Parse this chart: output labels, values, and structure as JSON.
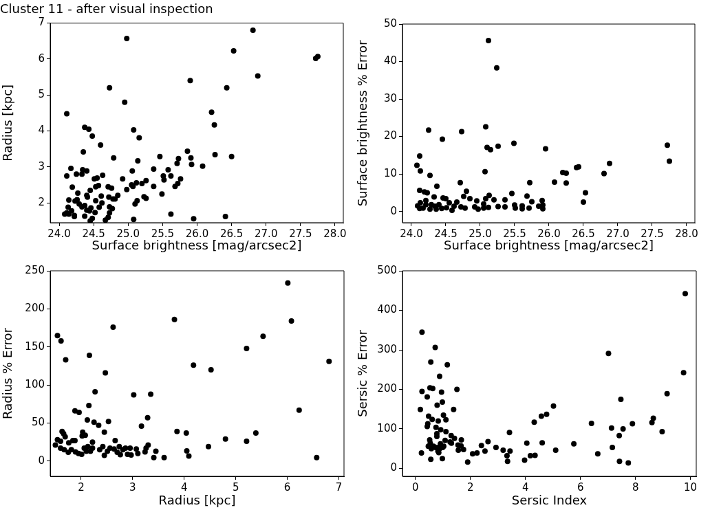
{
  "chart_data": [
    {
      "type": "scatter",
      "title": "Cluster 11 - after visual inspection",
      "xlabel": "Surface brightness [mag/arcsec2]",
      "ylabel": "Radius [kpc]",
      "color": "#000000",
      "marker": "circle",
      "x": [
        24.98,
        26.81,
        26.53,
        27.72,
        27.75,
        26.88,
        25.9,
        24.73,
        26.43,
        24.95,
        24.11,
        26.21,
        26.25,
        24.37,
        24.43,
        25.08,
        24.48,
        25.16,
        24.6,
        24.35,
        25.86,
        24.79,
        25.46,
        25.91,
        26.26,
        26.5,
        25.73,
        25.14,
        25.71,
        25.92,
        26.08,
        24.17,
        24.34,
        24.4,
        25.37,
        25.58,
        24.11,
        24.25,
        24.33,
        24.63,
        25.06,
        25.51,
        25.52,
        25.62,
        25.76,
        24.51,
        24.55,
        24.92,
        25.12,
        25.2,
        25.26,
        25.05,
        25.07,
        24.19,
        24.53,
        24.57,
        24.71,
        24.76,
        25.37,
        25.68,
        25.72,
        24.45,
        24.98,
        24.27,
        24.4,
        24.41,
        24.61,
        24.72,
        24.78,
        24.81,
        24.85,
        25.23,
        25.26,
        25.49,
        24.14,
        24.23,
        24.26,
        24.53,
        24.62,
        25.13,
        25.1,
        24.29,
        24.33,
        24.37,
        24.13,
        24.58,
        24.73,
        24.77,
        24.4,
        24.44,
        24.46,
        24.18,
        24.08,
        24.11,
        24.14,
        24.22,
        24.22,
        24.37,
        24.52,
        24.73,
        25.62,
        24.71,
        26.41,
        25.08,
        25.95,
        24.67,
        24.45,
        24.48
      ],
      "values": [
        6.57,
        6.8,
        6.23,
        6.02,
        6.07,
        5.53,
        5.4,
        5.2,
        5.2,
        4.8,
        4.48,
        4.52,
        4.17,
        4.1,
        4.05,
        4.03,
        3.86,
        3.81,
        3.61,
        3.42,
        3.44,
        3.25,
        3.29,
        3.25,
        3.34,
        3.29,
        3.23,
        3.17,
        3.1,
        3.07,
        3.02,
        2.96,
        2.92,
        2.89,
        2.94,
        2.92,
        2.75,
        2.8,
        2.8,
        2.77,
        2.89,
        2.75,
        2.64,
        2.75,
        2.67,
        2.67,
        2.69,
        2.67,
        2.56,
        2.54,
        2.62,
        2.5,
        2.46,
        2.44,
        2.45,
        2.48,
        2.45,
        2.41,
        2.46,
        2.46,
        2.54,
        2.35,
        2.37,
        2.27,
        2.21,
        2.16,
        2.19,
        2.16,
        2.11,
        2.11,
        2.21,
        2.17,
        2.13,
        2.25,
        2.08,
        2.05,
        2.09,
        2.06,
        2.0,
        2.06,
        1.97,
        1.97,
        1.89,
        1.93,
        1.88,
        1.88,
        1.89,
        1.84,
        1.8,
        1.78,
        1.86,
        1.78,
        1.69,
        1.72,
        1.69,
        1.65,
        1.62,
        1.63,
        1.73,
        1.72,
        1.69,
        1.6,
        1.62,
        1.54,
        1.56,
        1.52,
        1.5,
        1.57
      ],
      "xlim": [
        23.87,
        28.12
      ],
      "xticks": [
        {
          "value": 24,
          "label": "24.0"
        },
        24.5,
        {
          "value": 25,
          "label": "25.0"
        },
        25.5,
        {
          "value": 26,
          "label": "26.0"
        },
        26.5,
        {
          "value": 27,
          "label": "27.0"
        },
        27.5,
        {
          "value": 28,
          "label": "28.0"
        }
      ],
      "ylim": [
        1.45,
        7
      ],
      "yticks": [
        2,
        3,
        4,
        5,
        6,
        7
      ]
    },
    {
      "type": "scatter",
      "xlabel": "Surface brightness [mag/arcsec2]",
      "ylabel": "Surface brightness % Error",
      "color": "#000000",
      "marker": "circle",
      "x": [
        25.12,
        25.24,
        25.08,
        24.25,
        24.73,
        24.45,
        25.49,
        27.72,
        25.1,
        25.15,
        25.26,
        25.95,
        24.12,
        27.75,
        26.88,
        24.08,
        26.4,
        26.43,
        24.13,
        25.07,
        26.2,
        26.25,
        26.8,
        24.27,
        24.71,
        25.72,
        26.08,
        26.25,
        24.37,
        24.12,
        24.19,
        24.23,
        24.8,
        26.53,
        25.46,
        24.33,
        24.76,
        25.13,
        25.68,
        24.46,
        24.5,
        24.85,
        25.08,
        25.2,
        25.36,
        25.9,
        26.5,
        25.75,
        24.21,
        24.09,
        24.13,
        24.12,
        24.17,
        24.21,
        24.27,
        24.29,
        24.34,
        24.36,
        24.4,
        24.44,
        24.51,
        24.55,
        24.59,
        24.62,
        24.66,
        24.72,
        24.78,
        24.92,
        24.95,
        24.97,
        25.05,
        25.05,
        25.12,
        25.26,
        25.36,
        25.5,
        25.51,
        25.61,
        25.61,
        25.71,
        25.85,
        25.91,
        25.91
      ],
      "values": [
        45.6,
        38.3,
        22.6,
        21.7,
        21.3,
        19.3,
        18.2,
        17.7,
        17.1,
        16.5,
        17.4,
        16.7,
        14.8,
        13.4,
        12.8,
        12.3,
        11.7,
        11.9,
        10.8,
        10.6,
        10.4,
        10.2,
        10.1,
        9.6,
        7.7,
        7.7,
        7.8,
        7.6,
        6.7,
        5.6,
        5.2,
        5.0,
        5.4,
        5.0,
        4.8,
        3.9,
        4.0,
        4.3,
        4.1,
        3.6,
        3.4,
        3.4,
        3.4,
        3.1,
        3.1,
        2.9,
        2.5,
        2.6,
        2.9,
        1.5,
        2.3,
        0.8,
        0.9,
        1.8,
        0.6,
        1.8,
        1.4,
        0.6,
        1.8,
        0.8,
        1.0,
        2.3,
        0.3,
        1.4,
        2.5,
        1.2,
        0.9,
        1.2,
        2.8,
        0.6,
        0.9,
        2.0,
        1.1,
        1.3,
        1.2,
        1.7,
        0.9,
        1.5,
        0.7,
        0.9,
        1.4,
        1.7,
        0.7
      ],
      "xlim": [
        23.87,
        28.12
      ],
      "xticks": [
        {
          "value": 24,
          "label": "24.0"
        },
        24.5,
        {
          "value": 25,
          "label": "25.0"
        },
        25.5,
        {
          "value": 26,
          "label": "26.0"
        },
        26.5,
        {
          "value": 27,
          "label": "27.0"
        },
        27.5,
        {
          "value": 28,
          "label": "28.0"
        }
      ],
      "ylim": [
        -3,
        50
      ],
      "yticks": [
        0,
        10,
        20,
        30,
        40,
        50
      ]
    },
    {
      "type": "scatter",
      "xlabel": "Radius [kpc]",
      "ylabel": "Radius % Error",
      "color": "#000000",
      "marker": "circle",
      "x": [
        6.01,
        3.81,
        6.08,
        2.62,
        1.54,
        1.61,
        5.53,
        5.21,
        1.7,
        2.16,
        4.18,
        4.52,
        6.81,
        2.47,
        2.27,
        3.02,
        3.35,
        2.15,
        6.23,
        1.88,
        1.96,
        3.29,
        2.12,
        2.25,
        2.53,
        2.34,
        3.17,
        1.63,
        1.66,
        3.86,
        4.04,
        5.39,
        2.45,
        2.03,
        2.02,
        2.08,
        1.69,
        1.54,
        1.6,
        1.84,
        1.88,
        1.76,
        2.66,
        2.22,
        4.8,
        5.21,
        1.5,
        4.47,
        1.6,
        1.67,
        1.75,
        1.81,
        1.89,
        1.95,
        2.01,
        2.06,
        2.1,
        2.13,
        2.18,
        2.22,
        2.36,
        2.42,
        2.45,
        2.51,
        2.56,
        2.64,
        2.7,
        2.74,
        2.76,
        2.81,
        2.86,
        2.9,
        2.95,
        2.97,
        3.07,
        3.1,
        3.24,
        3.26,
        3.3,
        3.41,
        3.45,
        3.61,
        4.05,
        4.09,
        6.57
      ],
      "values": [
        234,
        186,
        184,
        176,
        165,
        158,
        164,
        148,
        133,
        139,
        126,
        120,
        131,
        116,
        91,
        87,
        88,
        73,
        67,
        66,
        64,
        57,
        54,
        51,
        52,
        47,
        46,
        39,
        36,
        39,
        37,
        37,
        38,
        38,
        33,
        34,
        32,
        28,
        26,
        27,
        27,
        24,
        27,
        25,
        29,
        26,
        21,
        19,
        17,
        15,
        11.5,
        15,
        12,
        10,
        9,
        17,
        13,
        19,
        13,
        17,
        15,
        19,
        7.5,
        13,
        17,
        16,
        11.5,
        19,
        8.5,
        15,
        17,
        9,
        17,
        8,
        16,
        10,
        12,
        17,
        21,
        4.5,
        13,
        4.5,
        13.5,
        6.6,
        4.5
      ],
      "xlim": [
        1.4,
        7.1
      ],
      "xticks": [
        2,
        3,
        4,
        5,
        6,
        7
      ],
      "ylim": [
        -20,
        250
      ],
      "yticks": [
        0,
        50,
        100,
        150,
        200,
        250
      ]
    },
    {
      "type": "scatter",
      "xlabel": "Sersic Index",
      "ylabel": "Sersic % Error",
      "color": "#000000",
      "marker": "circle",
      "x": [
        9.81,
        0.24,
        0.72,
        7.02,
        0.56,
        1.16,
        0.88,
        9.75,
        0.53,
        0.63,
        1.51,
        0.24,
        0.95,
        0.43,
        9.15,
        0.98,
        7.47,
        0.79,
        0.18,
        1.39,
        5.02,
        1.02,
        0.48,
        4.58,
        4.77,
        0.61,
        1.11,
        0.83,
        0.45,
        4.32,
        6.4,
        8.65,
        8.6,
        7.89,
        0.43,
        0.75,
        0.92,
        7.13,
        7.55,
        1.11,
        8.97,
        3.42,
        0.78,
        0.78,
        1.3,
        7.41,
        1.42,
        0.52,
        1.67,
        1.08,
        1.26,
        2.64,
        1.31,
        4.61,
        4.05,
        5.76,
        0.54,
        0.91,
        0.47,
        0.66,
        0.84,
        1.03,
        1.55,
        1.66,
        2.4,
        2.93,
        7.16,
        0.58,
        0.73,
        0.88,
        0.99,
        1.56,
        1.75,
        3.19,
        3.44,
        2.53,
        5.1,
        0.82,
        0.85,
        0.22,
        2.08,
        2.24,
        6.63,
        3.33,
        4.18,
        4.35,
        0.56,
        0.98,
        1.9,
        3.35,
        3.97,
        7.42,
        7.74
      ],
      "values": [
        442,
        345,
        306,
        291,
        269,
        262,
        233,
        242,
        204,
        202,
        200,
        195,
        193,
        181,
        189,
        168,
        175,
        160,
        149,
        149,
        158,
        135,
        132,
        132,
        137,
        124,
        123,
        120,
        113,
        117,
        114,
        127,
        116,
        113,
        106,
        104,
        98,
        102,
        100,
        93,
        93,
        91,
        88,
        81,
        83,
        83,
        76,
        72,
        72,
        71,
        67,
        68,
        64,
        65,
        64,
        62,
        64,
        62,
        56,
        56,
        53,
        56,
        59,
        57,
        58,
        53,
        53,
        50,
        53,
        50,
        53,
        46,
        48,
        46,
        44,
        44,
        46,
        44,
        40,
        39,
        37,
        39,
        37,
        32,
        32,
        33,
        23,
        25,
        16,
        18,
        21,
        18,
        14
      ],
      "xlim": [
        -0.47,
        10.21
      ],
      "xticks": [
        0,
        2,
        4,
        6,
        8,
        10
      ],
      "ylim": [
        -20,
        500
      ],
      "yticks": [
        0,
        100,
        200,
        300,
        400,
        500
      ]
    }
  ]
}
